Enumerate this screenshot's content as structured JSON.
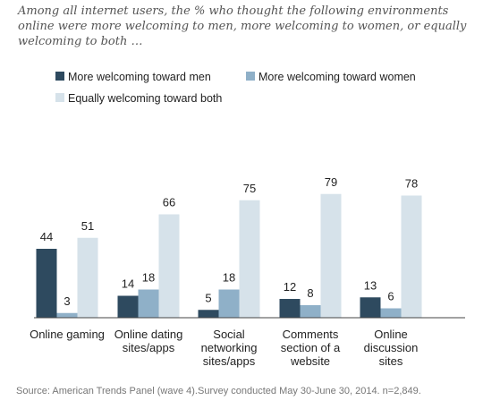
{
  "chart_data": {
    "type": "bar",
    "title": "Among all internet users, the % who thought the following environments online were more welcoming to men, more welcoming to women, or equally welcoming to both …",
    "categories": [
      [
        "Online gaming"
      ],
      [
        "Online dating",
        "sites/apps"
      ],
      [
        "Social",
        "networking",
        "sites/apps"
      ],
      [
        "Comments",
        "section of a",
        "website"
      ],
      [
        "Online",
        "discussion",
        "sites"
      ]
    ],
    "series": [
      {
        "name": "More welcoming toward men",
        "color": "#2e4a5f",
        "values": [
          44,
          14,
          5,
          12,
          13
        ]
      },
      {
        "name": "More welcoming toward women",
        "color": "#8fb0c8",
        "values": [
          3,
          18,
          18,
          8,
          6
        ]
      },
      {
        "name": "Equally welcoming toward both",
        "color": "#d6e2ea",
        "values": [
          51,
          66,
          75,
          79,
          78
        ]
      }
    ],
    "ylim": [
      0,
      100
    ],
    "grid": false,
    "legend_position": "top",
    "data_labels": true
  },
  "source": "Source: American Trends Panel (wave 4).Survey conducted May 30-June 30, 2014. n=2,849."
}
